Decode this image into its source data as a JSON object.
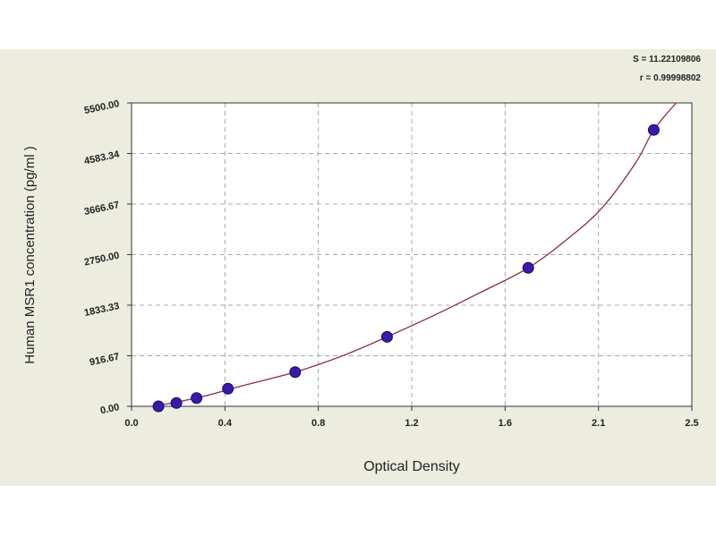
{
  "chart_data": {
    "type": "scatter",
    "xlabel": "Optical Density",
    "ylabel": "Human  MSR1 concentration (pg/ml )",
    "x_ticks": [
      "0.0",
      "0.4",
      "0.8",
      "1.2",
      "1.6",
      "2.1",
      "2.5"
    ],
    "y_ticks": [
      "0.00",
      "916.67",
      "1833.33",
      "2750.00",
      "3666.67",
      "4583.34",
      "5500.00"
    ],
    "xlim": [
      0,
      2.5
    ],
    "ylim": [
      0,
      5500
    ],
    "grid": true,
    "stats": [
      "S = 11.22109806",
      "r = 0.99998802"
    ],
    "points": [
      {
        "x": 0.12,
        "y": 0
      },
      {
        "x": 0.2,
        "y": 60
      },
      {
        "x": 0.29,
        "y": 150
      },
      {
        "x": 0.43,
        "y": 320
      },
      {
        "x": 0.73,
        "y": 620
      },
      {
        "x": 1.14,
        "y": 1260
      },
      {
        "x": 1.77,
        "y": 2510
      },
      {
        "x": 2.33,
        "y": 5010
      }
    ],
    "fit_curve": [
      {
        "x": 0.1,
        "y": 0
      },
      {
        "x": 0.3,
        "y": 160
      },
      {
        "x": 0.5,
        "y": 380
      },
      {
        "x": 0.73,
        "y": 620
      },
      {
        "x": 0.95,
        "y": 930
      },
      {
        "x": 1.14,
        "y": 1260
      },
      {
        "x": 1.35,
        "y": 1650
      },
      {
        "x": 1.55,
        "y": 2050
      },
      {
        "x": 1.77,
        "y": 2510
      },
      {
        "x": 1.95,
        "y": 3050
      },
      {
        "x": 2.1,
        "y": 3600
      },
      {
        "x": 2.25,
        "y": 4420
      },
      {
        "x": 2.33,
        "y": 5010
      },
      {
        "x": 2.43,
        "y": 5500
      }
    ],
    "colors": {
      "background": "#ececdf",
      "plot_background": "#ffffff",
      "grid": "#a8a8a8",
      "curve": "#8a2a4a",
      "marker": "#3a1aa8",
      "marker_edge": "#1a0a6a"
    }
  }
}
